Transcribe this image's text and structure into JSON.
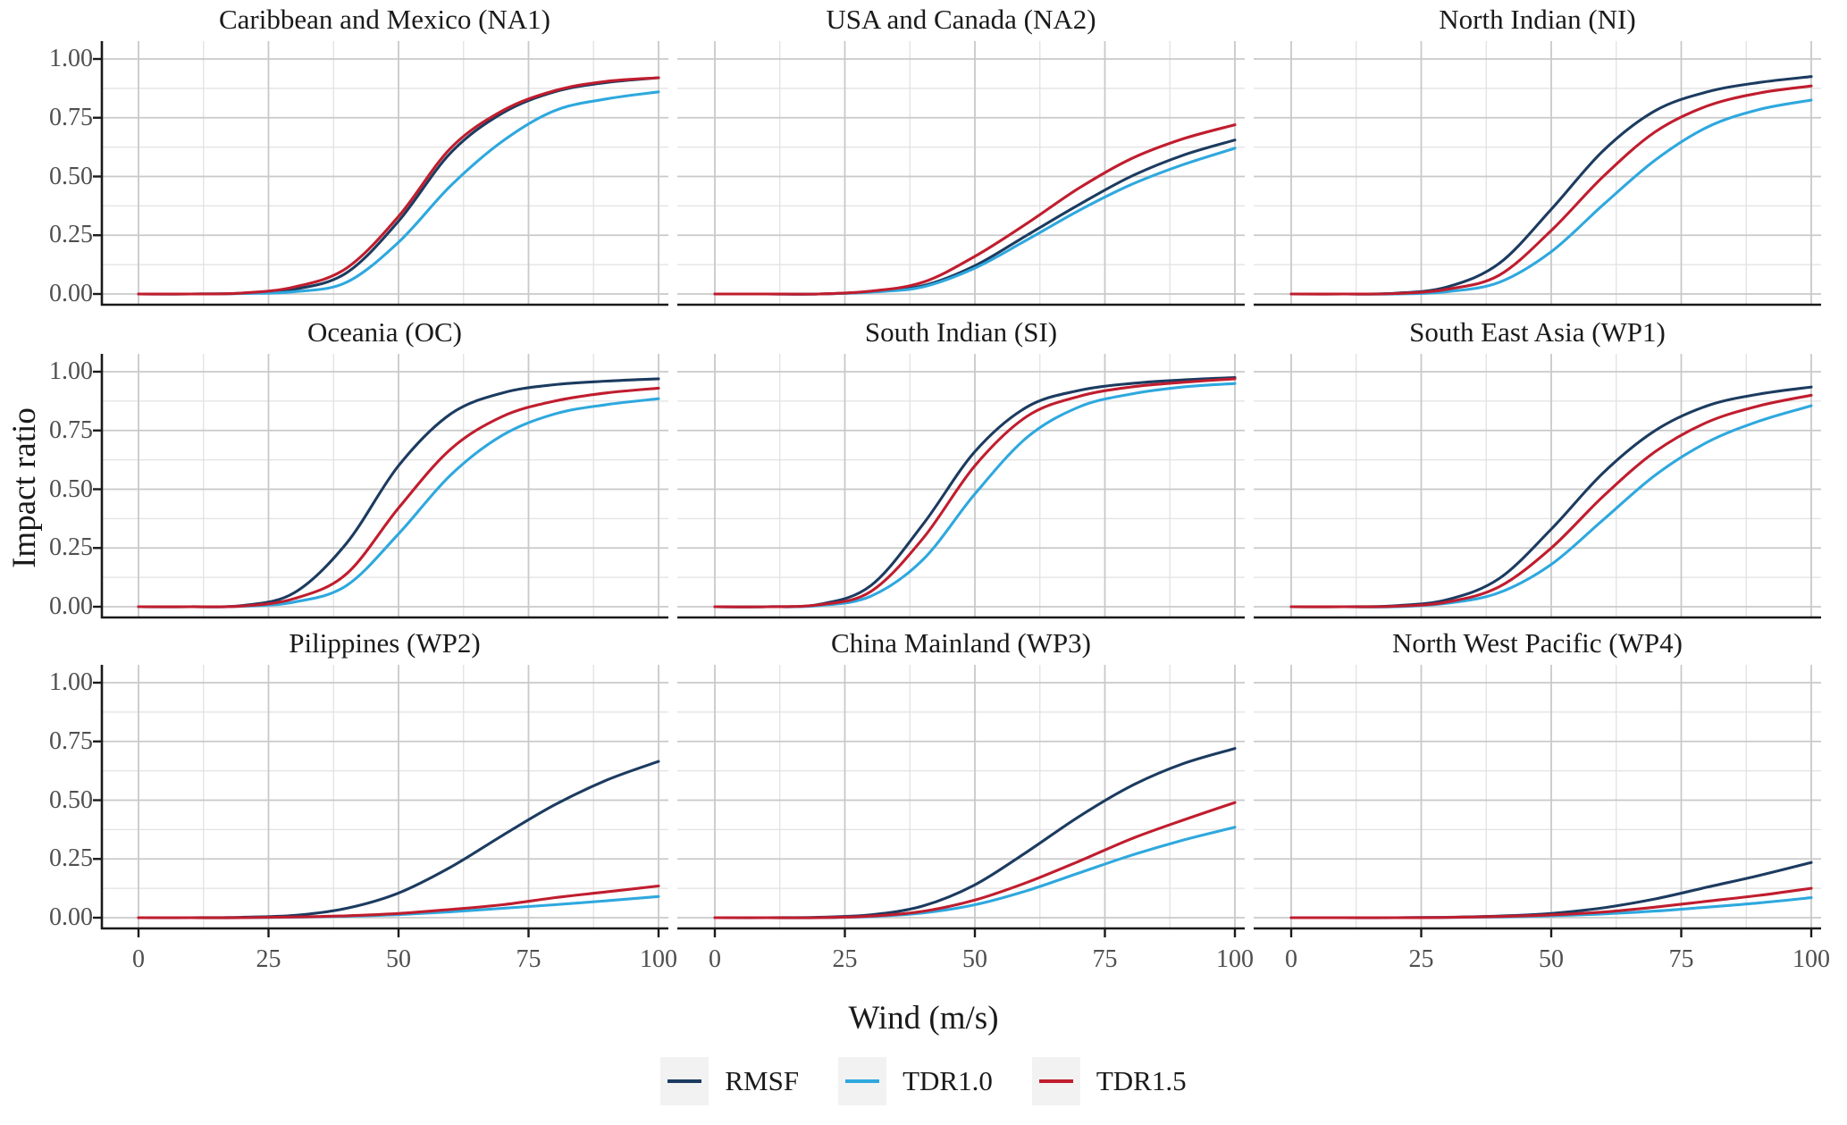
{
  "chart_data": {
    "type": "line",
    "facets": "3x3",
    "x": [
      0,
      10,
      20,
      30,
      40,
      50,
      60,
      70,
      80,
      90,
      100
    ],
    "xlim": [
      0,
      100
    ],
    "ylim": [
      0,
      1
    ],
    "x_ticks": [
      0,
      25,
      50,
      75,
      100
    ],
    "y_ticks": [
      "1.00",
      "0.75",
      "0.50",
      "0.25",
      "0.00"
    ],
    "y_tick_values": [
      1.0,
      0.75,
      0.5,
      0.25,
      0.0
    ],
    "grid": {
      "major_x": 25,
      "minor_x": 12.5,
      "major_y": 0.25,
      "minor_y": 0.125,
      "major_color": "#c9c9c9",
      "minor_color": "#e2e2e2"
    },
    "xlabel": "Wind (m/s)",
    "ylabel": "Impact ratio",
    "axis_color": "#1a1a1a",
    "legend": {
      "position": "bottom",
      "entries": [
        {
          "label": "RMSF",
          "color": "#1c3b60"
        },
        {
          "label": "TDR1.0",
          "color": "#2ea8de"
        },
        {
          "label": "TDR1.5",
          "color": "#c01d2e"
        }
      ]
    },
    "panels": [
      {
        "title": "Caribbean and Mexico (NA1)",
        "series": [
          {
            "name": "RMSF",
            "values": [
              0,
              0,
              0.003,
              0.02,
              0.09,
              0.31,
              0.6,
              0.77,
              0.86,
              0.9,
              0.92
            ]
          },
          {
            "name": "TDR1.0",
            "values": [
              0,
              0,
              0.002,
              0.01,
              0.05,
              0.22,
              0.46,
              0.65,
              0.78,
              0.83,
              0.86
            ]
          },
          {
            "name": "TDR1.5",
            "values": [
              0,
              0,
              0.004,
              0.03,
              0.11,
              0.33,
              0.62,
              0.78,
              0.865,
              0.905,
              0.92
            ]
          }
        ]
      },
      {
        "title": "USA and Canada (NA2)",
        "series": [
          {
            "name": "RMSF",
            "values": [
              0,
              0,
              0,
              0.01,
              0.035,
              0.12,
              0.25,
              0.38,
              0.5,
              0.59,
              0.655
            ]
          },
          {
            "name": "TDR1.0",
            "values": [
              0,
              0,
              0,
              0.008,
              0.03,
              0.11,
              0.23,
              0.355,
              0.465,
              0.55,
              0.62
            ]
          },
          {
            "name": "TDR1.5",
            "values": [
              0,
              0,
              0,
              0.012,
              0.05,
              0.16,
              0.3,
              0.45,
              0.575,
              0.66,
              0.72
            ]
          }
        ]
      },
      {
        "title": "North Indian (NI)",
        "series": [
          {
            "name": "RMSF",
            "values": [
              0,
              0,
              0.003,
              0.03,
              0.13,
              0.36,
              0.61,
              0.78,
              0.86,
              0.9,
              0.925
            ]
          },
          {
            "name": "TDR1.0",
            "values": [
              0,
              0,
              0,
              0.01,
              0.05,
              0.18,
              0.38,
              0.57,
              0.71,
              0.785,
              0.825
            ]
          },
          {
            "name": "TDR1.5",
            "values": [
              0,
              0,
              0.002,
              0.02,
              0.08,
              0.27,
              0.5,
              0.69,
              0.8,
              0.855,
              0.885
            ]
          }
        ]
      },
      {
        "title": "Oceania (OC)",
        "series": [
          {
            "name": "RMSF",
            "values": [
              0,
              0,
              0.005,
              0.06,
              0.27,
              0.6,
              0.82,
              0.91,
              0.945,
              0.96,
              0.97
            ]
          },
          {
            "name": "TDR1.0",
            "values": [
              0,
              0,
              0.002,
              0.02,
              0.09,
              0.31,
              0.56,
              0.73,
              0.82,
              0.86,
              0.885
            ]
          },
          {
            "name": "TDR1.5",
            "values": [
              0,
              0,
              0.003,
              0.035,
              0.14,
              0.42,
              0.67,
              0.81,
              0.875,
              0.91,
              0.93
            ]
          }
        ]
      },
      {
        "title": "South Indian (SI)",
        "series": [
          {
            "name": "RMSF",
            "values": [
              0,
              0,
              0.01,
              0.09,
              0.35,
              0.66,
              0.85,
              0.92,
              0.95,
              0.965,
              0.975
            ]
          },
          {
            "name": "TDR1.0",
            "values": [
              0,
              0,
              0.005,
              0.045,
              0.2,
              0.48,
              0.72,
              0.85,
              0.905,
              0.935,
              0.95
            ]
          },
          {
            "name": "TDR1.5",
            "values": [
              0,
              0,
              0.008,
              0.065,
              0.29,
              0.6,
              0.81,
              0.895,
              0.935,
              0.955,
              0.97
            ]
          }
        ]
      },
      {
        "title": "South East Asia (WP1)",
        "series": [
          {
            "name": "RMSF",
            "values": [
              0,
              0,
              0.004,
              0.03,
              0.12,
              0.33,
              0.57,
              0.75,
              0.855,
              0.905,
              0.935
            ]
          },
          {
            "name": "TDR1.0",
            "values": [
              0,
              0,
              0,
              0.015,
              0.06,
              0.18,
              0.37,
              0.56,
              0.7,
              0.79,
              0.855
            ]
          },
          {
            "name": "TDR1.5",
            "values": [
              0,
              0,
              0.002,
              0.02,
              0.085,
              0.25,
              0.47,
              0.66,
              0.785,
              0.855,
              0.9
            ]
          }
        ]
      },
      {
        "title": "Pilippines (WP2)",
        "series": [
          {
            "name": "RMSF",
            "values": [
              0,
              0,
              0.002,
              0.01,
              0.04,
              0.105,
              0.215,
              0.35,
              0.48,
              0.585,
              0.665
            ]
          },
          {
            "name": "TDR1.0",
            "values": [
              0,
              0,
              0,
              0.002,
              0.006,
              0.013,
              0.025,
              0.04,
              0.055,
              0.072,
              0.09
            ]
          },
          {
            "name": "TDR1.5",
            "values": [
              0,
              0,
              0,
              0.003,
              0.008,
              0.018,
              0.035,
              0.055,
              0.085,
              0.11,
              0.135
            ]
          }
        ]
      },
      {
        "title": "China Mainland (WP3)",
        "series": [
          {
            "name": "RMSF",
            "values": [
              0,
              0,
              0.002,
              0.012,
              0.05,
              0.14,
              0.28,
              0.43,
              0.56,
              0.655,
              0.72
            ]
          },
          {
            "name": "TDR1.0",
            "values": [
              0,
              0,
              0,
              0.005,
              0.02,
              0.055,
              0.115,
              0.19,
              0.265,
              0.33,
              0.385
            ]
          },
          {
            "name": "TDR1.5",
            "values": [
              0,
              0,
              0,
              0.007,
              0.027,
              0.075,
              0.15,
              0.24,
              0.335,
              0.415,
              0.49
            ]
          }
        ]
      },
      {
        "title": "North West Pacific (WP4)",
        "series": [
          {
            "name": "RMSF",
            "values": [
              0,
              0,
              0,
              0.002,
              0.007,
              0.018,
              0.042,
              0.08,
              0.13,
              0.18,
              0.235
            ]
          },
          {
            "name": "TDR1.0",
            "values": [
              0,
              0,
              0,
              0.001,
              0.003,
              0.008,
              0.016,
              0.028,
              0.045,
              0.063,
              0.085
            ]
          },
          {
            "name": "TDR1.5",
            "values": [
              0,
              0,
              0,
              0.001,
              0.005,
              0.012,
              0.024,
              0.045,
              0.07,
              0.095,
              0.125
            ]
          }
        ]
      }
    ]
  }
}
